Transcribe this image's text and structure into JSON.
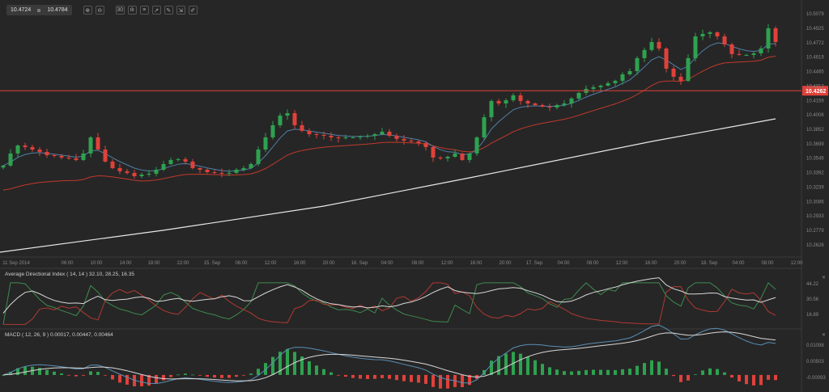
{
  "toolbar": {
    "bid": "10.4724",
    "ask": "10.4784",
    "buttons": [
      {
        "name": "zoom-in-icon",
        "glyph": "⊕"
      },
      {
        "name": "zoom-out-icon",
        "glyph": "⊖"
      },
      {
        "name": "timeframe-icon",
        "glyph": "30"
      },
      {
        "name": "chart-type-icon",
        "glyph": "ılı"
      },
      {
        "name": "indicators-icon",
        "glyph": "≡"
      },
      {
        "name": "templates-icon",
        "glyph": "↗"
      },
      {
        "name": "tools-icon",
        "glyph": "✎"
      },
      {
        "name": "export-icon",
        "glyph": "⇲"
      },
      {
        "name": "draw-icon",
        "glyph": "✐"
      }
    ]
  },
  "colors": {
    "up": "#2ea24f",
    "down": "#e0413a",
    "background": "#262626",
    "ema_short": "#4f7fa8",
    "ema_long": "#c0392b",
    "ma_long": "#e8e8e8",
    "level": "#e0413a"
  },
  "chart_data": [
    {
      "type": "candlestick",
      "interval": "1h",
      "price_axis": {
        "ticks": [
          "10.5079",
          "10.4925",
          "10.4772",
          "10.4619",
          "10.4465",
          "10.4312",
          "10.4159",
          "10.4006",
          "10.3852",
          "10.3699",
          "10.3546",
          "10.3392",
          "10.3239",
          "10.3086",
          "10.2933",
          "10.2779",
          "10.2626"
        ],
        "range": [
          10.2626,
          10.5079
        ]
      },
      "level_line": {
        "value": 10.4262,
        "label": "10.4262"
      },
      "time_axis": [
        "11 Sep 2014",
        "06:00",
        "10:00",
        "14:00",
        "18:00",
        "22:00",
        "15. Sep",
        "06:00",
        "12:00",
        "16:00",
        "20:00",
        "16. Sep",
        "04:00",
        "08:00",
        "12:00",
        "16:00",
        "20:00",
        "17. Sep",
        "04:00",
        "08:00",
        "12:00",
        "16:00",
        "20:00",
        "18. Sep",
        "04:00",
        "08:00",
        "12:00"
      ],
      "closes": [
        10.3467,
        10.3596,
        10.3681,
        10.3664,
        10.3638,
        10.3613,
        10.3578,
        10.357,
        10.3553,
        10.3544,
        10.3527,
        10.3596,
        10.3767,
        10.3638,
        10.351,
        10.3441,
        10.3407,
        10.339,
        10.3355,
        10.3372,
        10.3381,
        10.3424,
        10.3484,
        10.3527,
        10.3536,
        10.351,
        10.3441,
        10.3424,
        10.3398,
        10.339,
        10.3381,
        10.339,
        10.3424,
        10.3441,
        10.3484,
        10.3638,
        10.3767,
        10.3896,
        10.3998,
        10.4024,
        10.3896,
        10.3836,
        10.3801,
        10.3793,
        10.3784,
        10.3767,
        10.3759,
        10.3767,
        10.3767,
        10.3776,
        10.3784,
        10.3801,
        10.3827,
        10.3784,
        10.375,
        10.3733,
        10.3724,
        10.3707,
        10.3664,
        10.3553,
        10.3544,
        10.3561,
        10.3596,
        10.3527,
        10.3596,
        10.3767,
        10.3981,
        10.4153,
        10.4127,
        10.4161,
        10.4213,
        10.4153,
        10.4127,
        10.411,
        10.4093,
        10.4084,
        10.411,
        10.4127,
        10.4179,
        10.4239,
        10.4282,
        10.4299,
        10.4316,
        10.4342,
        10.4367,
        10.4436,
        10.447,
        10.4608,
        10.4694,
        10.4779,
        10.471,
        10.4496,
        10.441,
        10.4367,
        10.4608,
        10.4839,
        10.4865,
        10.4882,
        10.4839,
        10.4753,
        10.4651,
        10.4642,
        10.4642,
        10.4659,
        10.471,
        10.4925,
        10.4779
      ],
      "ma_long_knots": [
        [
          0,
          10.2549
        ],
        [
          22,
          10.2781
        ],
        [
          44,
          10.3038
        ],
        [
          64,
          10.3338
        ],
        [
          89,
          10.3724
        ],
        [
          106,
          10.3964
        ]
      ]
    },
    {
      "type": "line",
      "title": "Average Directional Index ( 14, 14 ) 32.10, 28.25, 16.35",
      "ticks": [
        "44.22",
        "30.56",
        "16.89"
      ],
      "range": [
        16.89,
        44.22
      ]
    },
    {
      "type": "bar",
      "title": "MACD ( 12, 26, 9 ) 0.00017, 0.00447, 0.00464",
      "ticks": [
        "0.01098",
        "0.00503",
        "-0.00093"
      ],
      "range": [
        -0.00093,
        0.01098
      ]
    }
  ]
}
